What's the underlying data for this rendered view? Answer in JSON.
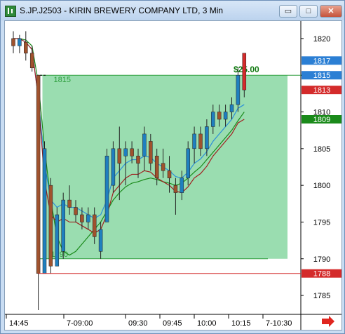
{
  "window": {
    "title": "S.JP.J2503 - KIRIN BREWERY COMPANY LTD, 3 Min",
    "minimize_glyph": "▭",
    "maximize_glyph": "□",
    "close_glyph": "✕",
    "app_icon": "chart-app-icon"
  },
  "chart_data": {
    "type": "candlestick",
    "y_ticks": [
      "1820",
      "1815",
      "1810",
      "1805",
      "1800",
      "1795",
      "1790",
      "1785"
    ],
    "ylim": [
      1783,
      1822
    ],
    "x_ticks": [
      "14:45",
      "7-09:00",
      "09:30",
      "09:45",
      "10:00",
      "10:15",
      "7-10:30"
    ],
    "price_markers": [
      {
        "label": "1817",
        "value": 1817,
        "color": "#2b7fd4"
      },
      {
        "label": "1815",
        "value": 1815,
        "color": "#2b7fd4"
      },
      {
        "label": "1813",
        "value": 1813,
        "color": "#d42b2b"
      },
      {
        "label": "1809",
        "value": 1809,
        "color": "#1a8a1a"
      },
      {
        "label": "1788",
        "value": 1788,
        "color": "#d42b2b"
      }
    ],
    "box": {
      "top_label": "1815",
      "bottom_label": "1790",
      "profit_label": "$25.00",
      "top": 1815,
      "bottom": 1790,
      "color": "#6fcf8f"
    },
    "candles": [
      {
        "o": 1820,
        "h": 1821,
        "l": 1818,
        "c": 1819
      },
      {
        "o": 1819,
        "h": 1820.5,
        "l": 1818,
        "c": 1820
      },
      {
        "o": 1819.5,
        "h": 1821,
        "l": 1817,
        "c": 1818
      },
      {
        "o": 1818,
        "h": 1819,
        "l": 1815.5,
        "c": 1816
      },
      {
        "o": 1815,
        "h": 1815,
        "l": 1783,
        "c": 1788
      },
      {
        "o": 1788,
        "h": 1806,
        "l": 1788,
        "c": 1805
      },
      {
        "o": 1800,
        "h": 1801,
        "l": 1788,
        "c": 1789
      },
      {
        "o": 1789,
        "h": 1797,
        "l": 1789,
        "c": 1796
      },
      {
        "o": 1791,
        "h": 1799,
        "l": 1790,
        "c": 1798
      },
      {
        "o": 1798,
        "h": 1800,
        "l": 1796,
        "c": 1797
      },
      {
        "o": 1797,
        "h": 1798,
        "l": 1795,
        "c": 1796
      },
      {
        "o": 1796,
        "h": 1797,
        "l": 1794,
        "c": 1795
      },
      {
        "o": 1795,
        "h": 1797,
        "l": 1794,
        "c": 1796
      },
      {
        "o": 1796,
        "h": 1797,
        "l": 1792,
        "c": 1793
      },
      {
        "o": 1791,
        "h": 1795,
        "l": 1790,
        "c": 1794
      },
      {
        "o": 1795,
        "h": 1805,
        "l": 1795,
        "c": 1804
      },
      {
        "o": 1800,
        "h": 1806,
        "l": 1799,
        "c": 1805
      },
      {
        "o": 1805,
        "h": 1808,
        "l": 1798,
        "c": 1803
      },
      {
        "o": 1804,
        "h": 1806,
        "l": 1800,
        "c": 1805
      },
      {
        "o": 1805,
        "h": 1806,
        "l": 1803,
        "c": 1804
      },
      {
        "o": 1804,
        "h": 1805,
        "l": 1801,
        "c": 1803
      },
      {
        "o": 1804,
        "h": 1808,
        "l": 1802,
        "c": 1807
      },
      {
        "o": 1806,
        "h": 1807,
        "l": 1802,
        "c": 1803
      },
      {
        "o": 1804,
        "h": 1805,
        "l": 1800,
        "c": 1801
      },
      {
        "o": 1803,
        "h": 1805,
        "l": 1801,
        "c": 1802
      },
      {
        "o": 1802,
        "h": 1804,
        "l": 1799,
        "c": 1801
      },
      {
        "o": 1800,
        "h": 1801,
        "l": 1796,
        "c": 1799
      },
      {
        "o": 1799,
        "h": 1802,
        "l": 1798,
        "c": 1801
      },
      {
        "o": 1801,
        "h": 1806,
        "l": 1800,
        "c": 1805
      },
      {
        "o": 1805,
        "h": 1808,
        "l": 1803,
        "c": 1807
      },
      {
        "o": 1807,
        "h": 1808,
        "l": 1804,
        "c": 1805
      },
      {
        "o": 1805,
        "h": 1809,
        "l": 1804,
        "c": 1808
      },
      {
        "o": 1808,
        "h": 1811,
        "l": 1807,
        "c": 1810
      },
      {
        "o": 1810,
        "h": 1811,
        "l": 1808,
        "c": 1809
      },
      {
        "o": 1809,
        "h": 1811,
        "l": 1808,
        "c": 1810
      },
      {
        "o": 1810,
        "h": 1812,
        "l": 1809,
        "c": 1811
      },
      {
        "o": 1811,
        "h": 1816,
        "l": 1810,
        "c": 1815
      },
      {
        "o": 1818,
        "h": 1818,
        "l": 1812,
        "c": 1813
      }
    ],
    "ma_fast": [
      1820,
      1820,
      1819.5,
      1818.5,
      1812,
      1803,
      1798,
      1797,
      1797.5,
      1797,
      1797,
      1796.5,
      1796,
      1795.5,
      1796,
      1798,
      1801,
      1802,
      1803,
      1803.5,
      1803.5,
      1804,
      1803.8,
      1803,
      1802.5,
      1802,
      1801.2,
      1801,
      1801.8,
      1803,
      1803.6,
      1804.6,
      1806,
      1807,
      1808,
      1809,
      1810.5,
      1811
    ],
    "ma_mid": [
      1820,
      1820,
      1819.8,
      1819,
      1814,
      1805,
      1798,
      1793,
      1791,
      1790.5,
      1791,
      1792,
      1793,
      1794,
      1795,
      1796.5,
      1798,
      1799,
      1799.8,
      1800.3,
      1800.5,
      1800.8,
      1801,
      1800.8,
      1800.5,
      1800.3,
      1800,
      1800.3,
      1801,
      1801.8,
      1802.5,
      1803.5,
      1804.5,
      1805.5,
      1806.5,
      1807.5,
      1808.8,
      1810
    ]
  }
}
